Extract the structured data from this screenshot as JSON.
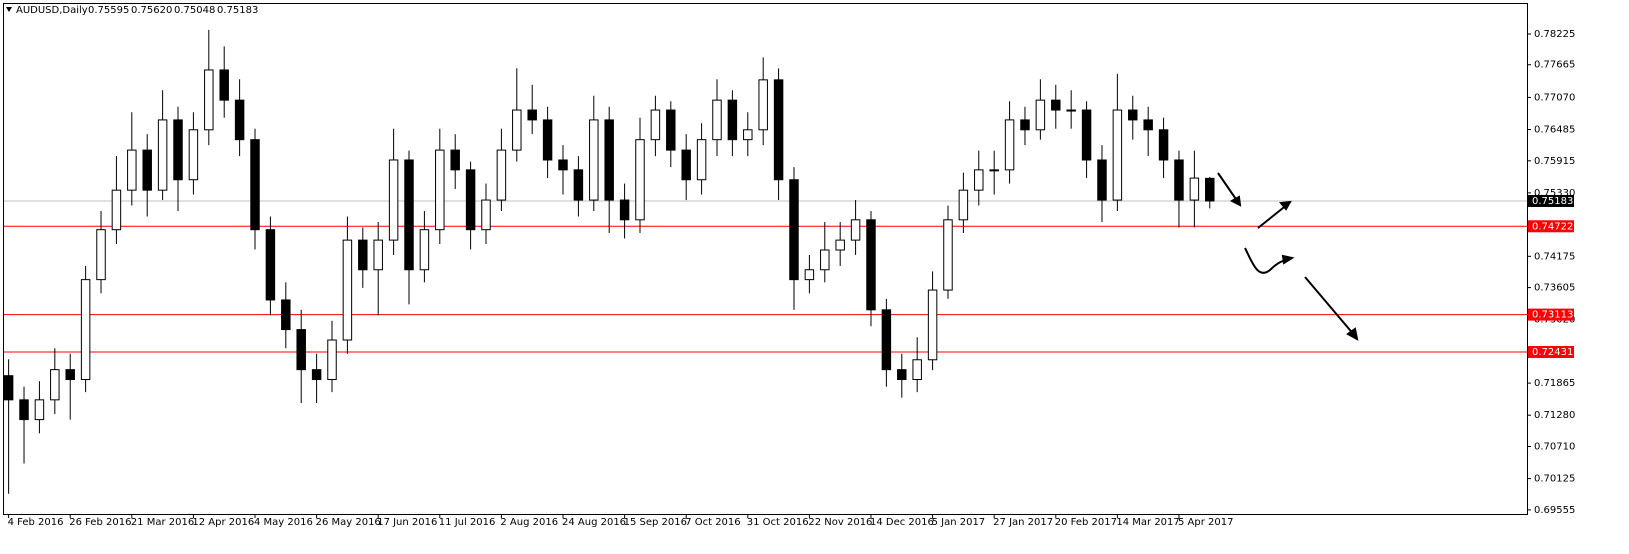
{
  "chart_data": {
    "type": "candlestick",
    "title": "AUDUSD,Daily",
    "ohlc_labels": [
      "0.75595",
      "0.75620",
      "0.75048",
      "0.75183"
    ],
    "up_color": "#ffffff",
    "down_color": "#000000",
    "wick_color": "#000000",
    "grid": false,
    "candles": [
      [
        0.72,
        0.723,
        0.6985,
        0.7156
      ],
      [
        0.7156,
        0.718,
        0.704,
        0.712
      ],
      [
        0.712,
        0.719,
        0.7095,
        0.7156
      ],
      [
        0.7156,
        0.725,
        0.713,
        0.7211
      ],
      [
        0.7211,
        0.724,
        0.712,
        0.7193
      ],
      [
        0.7193,
        0.74,
        0.717,
        0.7375
      ],
      [
        0.7375,
        0.75,
        0.735,
        0.7466
      ],
      [
        0.7466,
        0.76,
        0.744,
        0.7538
      ],
      [
        0.7538,
        0.768,
        0.751,
        0.7611
      ],
      [
        0.7611,
        0.764,
        0.749,
        0.7538
      ],
      [
        0.7538,
        0.772,
        0.752,
        0.7666
      ],
      [
        0.7666,
        0.769,
        0.75,
        0.7557
      ],
      [
        0.7557,
        0.768,
        0.753,
        0.7648
      ],
      [
        0.7648,
        0.783,
        0.762,
        0.7757
      ],
      [
        0.7757,
        0.78,
        0.767,
        0.7702
      ],
      [
        0.7702,
        0.774,
        0.76,
        0.763
      ],
      [
        0.763,
        0.765,
        0.743,
        0.7466
      ],
      [
        0.7466,
        0.749,
        0.731,
        0.7338
      ],
      [
        0.7338,
        0.737,
        0.725,
        0.7284
      ],
      [
        0.7284,
        0.732,
        0.715,
        0.7211
      ],
      [
        0.7211,
        0.724,
        0.715,
        0.7193
      ],
      [
        0.7193,
        0.73,
        0.717,
        0.7265
      ],
      [
        0.7265,
        0.749,
        0.724,
        0.7447
      ],
      [
        0.7447,
        0.747,
        0.736,
        0.7393
      ],
      [
        0.7393,
        0.748,
        0.731,
        0.7447
      ],
      [
        0.7447,
        0.765,
        0.742,
        0.7593
      ],
      [
        0.7593,
        0.761,
        0.733,
        0.7393
      ],
      [
        0.7393,
        0.75,
        0.737,
        0.7466
      ],
      [
        0.7466,
        0.765,
        0.744,
        0.7611
      ],
      [
        0.7611,
        0.764,
        0.754,
        0.7575
      ],
      [
        0.7575,
        0.759,
        0.743,
        0.7466
      ],
      [
        0.7466,
        0.755,
        0.744,
        0.752
      ],
      [
        0.752,
        0.765,
        0.75,
        0.7611
      ],
      [
        0.7611,
        0.776,
        0.759,
        0.7684
      ],
      [
        0.7684,
        0.773,
        0.764,
        0.7666
      ],
      [
        0.7666,
        0.769,
        0.756,
        0.7593
      ],
      [
        0.7593,
        0.762,
        0.753,
        0.7575
      ],
      [
        0.7575,
        0.76,
        0.749,
        0.752
      ],
      [
        0.752,
        0.771,
        0.75,
        0.7666
      ],
      [
        0.7666,
        0.769,
        0.746,
        0.752
      ],
      [
        0.752,
        0.755,
        0.745,
        0.7484
      ],
      [
        0.7484,
        0.767,
        0.746,
        0.763
      ],
      [
        0.763,
        0.771,
        0.76,
        0.7684
      ],
      [
        0.7684,
        0.77,
        0.758,
        0.7611
      ],
      [
        0.7611,
        0.764,
        0.752,
        0.7557
      ],
      [
        0.7557,
        0.766,
        0.753,
        0.763
      ],
      [
        0.763,
        0.774,
        0.76,
        0.7702
      ],
      [
        0.7702,
        0.772,
        0.76,
        0.763
      ],
      [
        0.763,
        0.768,
        0.76,
        0.7648
      ],
      [
        0.7648,
        0.778,
        0.762,
        0.7739
      ],
      [
        0.7739,
        0.776,
        0.752,
        0.7557
      ],
      [
        0.7557,
        0.758,
        0.732,
        0.7375
      ],
      [
        0.7375,
        0.742,
        0.735,
        0.7393
      ],
      [
        0.7393,
        0.748,
        0.737,
        0.7429
      ],
      [
        0.7429,
        0.748,
        0.74,
        0.7447
      ],
      [
        0.7447,
        0.752,
        0.742,
        0.7484
      ],
      [
        0.7484,
        0.75,
        0.729,
        0.732
      ],
      [
        0.732,
        0.734,
        0.718,
        0.7211
      ],
      [
        0.7211,
        0.724,
        0.716,
        0.7193
      ],
      [
        0.7193,
        0.727,
        0.717,
        0.7229
      ],
      [
        0.7229,
        0.739,
        0.721,
        0.7356
      ],
      [
        0.7356,
        0.751,
        0.734,
        0.7484
      ],
      [
        0.7484,
        0.757,
        0.746,
        0.7538
      ],
      [
        0.7538,
        0.761,
        0.751,
        0.7575
      ],
      [
        0.7575,
        0.761,
        0.753,
        0.7575
      ],
      [
        0.7575,
        0.77,
        0.755,
        0.7666
      ],
      [
        0.7666,
        0.769,
        0.762,
        0.7648
      ],
      [
        0.7648,
        0.774,
        0.763,
        0.7702
      ],
      [
        0.7702,
        0.773,
        0.765,
        0.7684
      ],
      [
        0.7684,
        0.772,
        0.765,
        0.7684
      ],
      [
        0.7684,
        0.77,
        0.756,
        0.7593
      ],
      [
        0.7593,
        0.762,
        0.748,
        0.752
      ],
      [
        0.752,
        0.775,
        0.75,
        0.7684
      ],
      [
        0.7684,
        0.771,
        0.763,
        0.7666
      ],
      [
        0.7666,
        0.769,
        0.76,
        0.7648
      ],
      [
        0.7648,
        0.767,
        0.756,
        0.7593
      ],
      [
        0.7593,
        0.761,
        0.747,
        0.752
      ],
      [
        0.752,
        0.761,
        0.747,
        0.756
      ],
      [
        0.75595,
        0.7562,
        0.75048,
        0.75183
      ]
    ],
    "xlim": [
      -0.3,
      98.6
    ],
    "xticks": [
      {
        "value": 0,
        "label": "4 Feb 2016"
      },
      {
        "value": 4,
        "label": "26 Feb 2016"
      },
      {
        "value": 8,
        "label": "21 Mar 2016"
      },
      {
        "value": 12,
        "label": "12 Apr 2016"
      },
      {
        "value": 16,
        "label": "4 May 2016"
      },
      {
        "value": 20,
        "label": "26 May 2016"
      },
      {
        "value": 24,
        "label": "17 Jun 2016"
      },
      {
        "value": 28,
        "label": "11 Jul 2016"
      },
      {
        "value": 32,
        "label": "2 Aug 2016"
      },
      {
        "value": 36,
        "label": "24 Aug 2016"
      },
      {
        "value": 40,
        "label": "15 Sep 2016"
      },
      {
        "value": 44,
        "label": "7 Oct 2016"
      },
      {
        "value": 48,
        "label": "31 Oct 2016"
      },
      {
        "value": 52,
        "label": "22 Nov 2016"
      },
      {
        "value": 56,
        "label": "14 Dec 2016"
      },
      {
        "value": 60,
        "label": "5 Jan 2017"
      },
      {
        "value": 64,
        "label": "27 Jan 2017"
      },
      {
        "value": 68,
        "label": "20 Feb 2017"
      },
      {
        "value": 72,
        "label": "14 Mar 2017"
      },
      {
        "value": 76,
        "label": "5 Apr 2017"
      }
    ],
    "ylim": [
      0.6948,
      0.7879
    ],
    "yticks": [
      0.78225,
      0.77665,
      {
        "value": 0.7707,
        "label": "0.77070"
      },
      0.76485,
      0.75915,
      {
        "value": 0.7533,
        "label": "0.75330"
      },
      0.74175,
      0.73605,
      {
        "value": 0.7302,
        "label": "0.73020"
      },
      0.71865,
      {
        "value": 0.7128,
        "label": "0.71280"
      },
      {
        "value": 0.7071,
        "label": "0.70710"
      },
      0.70125,
      0.69555
    ],
    "levels": [
      {
        "value": 0.74722,
        "color": "#ff0000"
      },
      {
        "value": 0.73113,
        "color": "#ff0000"
      },
      {
        "value": 0.72431,
        "color": "#ff0000"
      }
    ],
    "price_line": {
      "value": 0.75183,
      "color": "#c0c0c0",
      "label_color": "#000000"
    }
  }
}
